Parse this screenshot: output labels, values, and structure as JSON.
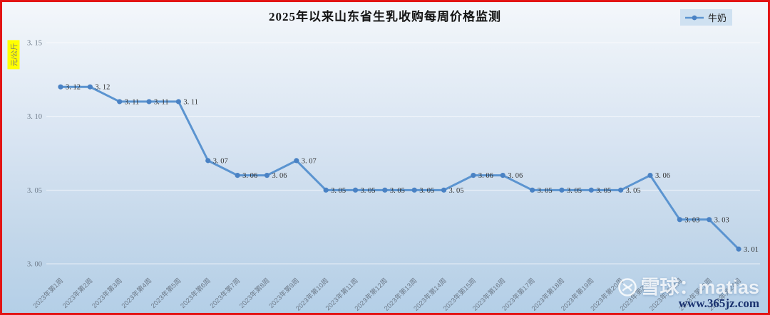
{
  "page": {
    "title": "2025年以来山东省生乳收购每周价格监测",
    "legend": {
      "label": "牛奶"
    },
    "y_axis_unit": "元/公斤",
    "watermark": {
      "brand": "雪球：matias",
      "url": "www.365jz.com"
    }
  },
  "colors": {
    "line": "#5b94d0",
    "point": "#4a82c4",
    "grid": "rgba(255,255,255,0.65)",
    "axis_text": "#6e7b8a",
    "value_label": "#333333",
    "border": "#e31414",
    "unit_bg": "#ffff00"
  },
  "chart_data": {
    "type": "line",
    "title": "2025年以来山东省生乳收购每周价格监测",
    "series_name": "牛奶",
    "categories": [
      "2023年第1周",
      "2023年第2周",
      "2023年第3周",
      "2023年第4周",
      "2023年第5周",
      "2023年第6周",
      "2023年第7周",
      "2023年第8周",
      "2023年第9周",
      "2023年第10周",
      "2023年第11周",
      "2023年第12周",
      "2023年第13周",
      "2023年第14周",
      "2023年第15周",
      "2023年第16周",
      "2023年第17周",
      "2023年第18周",
      "2023年第19周",
      "2023年第20周",
      "2023年第21周",
      "2023年第22周",
      "2023年第23周",
      "2023年第24周"
    ],
    "values": [
      3.12,
      3.12,
      3.11,
      3.11,
      3.11,
      3.07,
      3.06,
      3.06,
      3.07,
      3.05,
      3.05,
      3.05,
      3.05,
      3.05,
      3.06,
      3.06,
      3.05,
      3.05,
      3.05,
      3.05,
      3.06,
      3.03,
      3.03,
      3.01
    ],
    "point_labels": [
      "3. 12",
      "3. 12",
      "3. 11",
      "3. 11",
      "3. 11",
      "3. 07",
      "3. 06",
      "3. 06",
      "3. 07",
      "3. 05",
      "3. 05",
      "3. 05",
      "3. 05",
      "3. 05",
      "3. 06",
      "3. 06",
      "3. 05",
      "3. 05",
      "3. 05",
      "3. 05",
      "3. 06",
      "3. 03",
      "3. 03",
      "3. 01"
    ],
    "ylabel": "元/公斤",
    "xlabel": "",
    "ylim": [
      3.0,
      3.15
    ],
    "yticks": [
      3.0,
      3.05,
      3.1,
      3.15
    ],
    "ytick_labels": [
      "3. 00",
      "3. 05",
      "3. 10",
      "3. 15"
    ],
    "grid": true,
    "legend_position": "top-right"
  }
}
